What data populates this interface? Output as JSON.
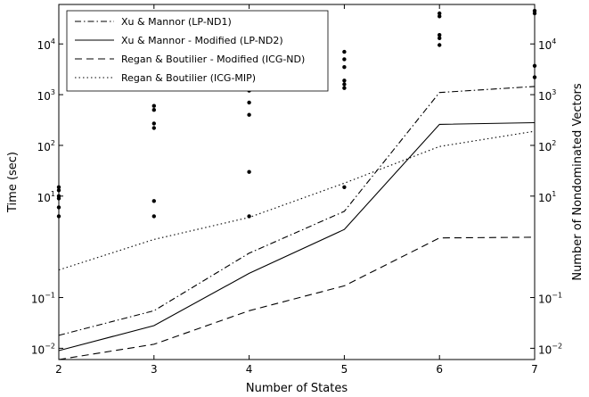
{
  "chart_data": {
    "type": "line",
    "xlabel": "Number of States",
    "ylabel_left": "Time (sec)",
    "ylabel_right": "Number of Nondominated Vectors",
    "x_ticks": [
      "2",
      "3",
      "4",
      "5",
      "6",
      "7"
    ],
    "xlim": [
      2,
      7
    ],
    "y_scale": "log",
    "ylim": [
      0.006,
      60000
    ],
    "y_ticks": [
      {
        "value": 0.01,
        "base": "10",
        "exp": "−2"
      },
      {
        "value": 0.1,
        "base": "10",
        "exp": "−1"
      },
      {
        "value": 10,
        "base": "10",
        "exp": "1"
      },
      {
        "value": 100,
        "base": "10",
        "exp": "2"
      },
      {
        "value": 1000,
        "base": "10",
        "exp": "3"
      },
      {
        "value": 10000,
        "base": "10",
        "exp": "4"
      }
    ],
    "series": [
      {
        "name": "Xu & Mannor (LP-ND1)",
        "style": "dashdot",
        "x": [
          2,
          3,
          4,
          5,
          6,
          7
        ],
        "y": [
          0.018,
          0.055,
          0.75,
          5.0,
          1100,
          1450
        ]
      },
      {
        "name": "Xu & Mannor - Modified (LP-ND2)",
        "style": "solid",
        "x": [
          2,
          3,
          4,
          5,
          6,
          7
        ],
        "y": [
          0.009,
          0.028,
          0.3,
          2.2,
          260,
          280
        ]
      },
      {
        "name": "Regan & Boutilier - Modified (ICG-ND)",
        "style": "dashed",
        "x": [
          2,
          3,
          4,
          5,
          6,
          7
        ],
        "y": [
          0.006,
          0.012,
          0.055,
          0.17,
          1.5,
          1.55
        ]
      },
      {
        "name": "Regan & Boutilier (ICG-MIP)",
        "style": "dotted",
        "x": [
          2,
          3,
          4,
          5,
          6,
          7
        ],
        "y": [
          0.35,
          1.4,
          3.8,
          18,
          95,
          190
        ]
      }
    ],
    "points": {
      "name": "Number of Nondominated Vectors",
      "x": [
        2,
        2,
        2,
        2,
        2,
        2,
        3,
        3,
        3,
        3,
        3,
        3,
        4,
        4,
        4,
        4,
        4,
        4,
        4,
        5,
        5,
        5,
        5,
        5,
        5,
        5,
        6,
        6,
        6,
        6,
        6,
        7,
        7,
        7,
        7
      ],
      "y": [
        15,
        13,
        10,
        9,
        6,
        4,
        600,
        500,
        270,
        220,
        8,
        4,
        3000,
        2000,
        1200,
        700,
        400,
        30,
        4,
        7000,
        5000,
        3500,
        1900,
        1600,
        1350,
        15,
        40000,
        35000,
        15000,
        13000,
        9500,
        45000,
        40000,
        3700,
        2200
      ]
    },
    "legend_position": "top-left",
    "grid": false
  }
}
